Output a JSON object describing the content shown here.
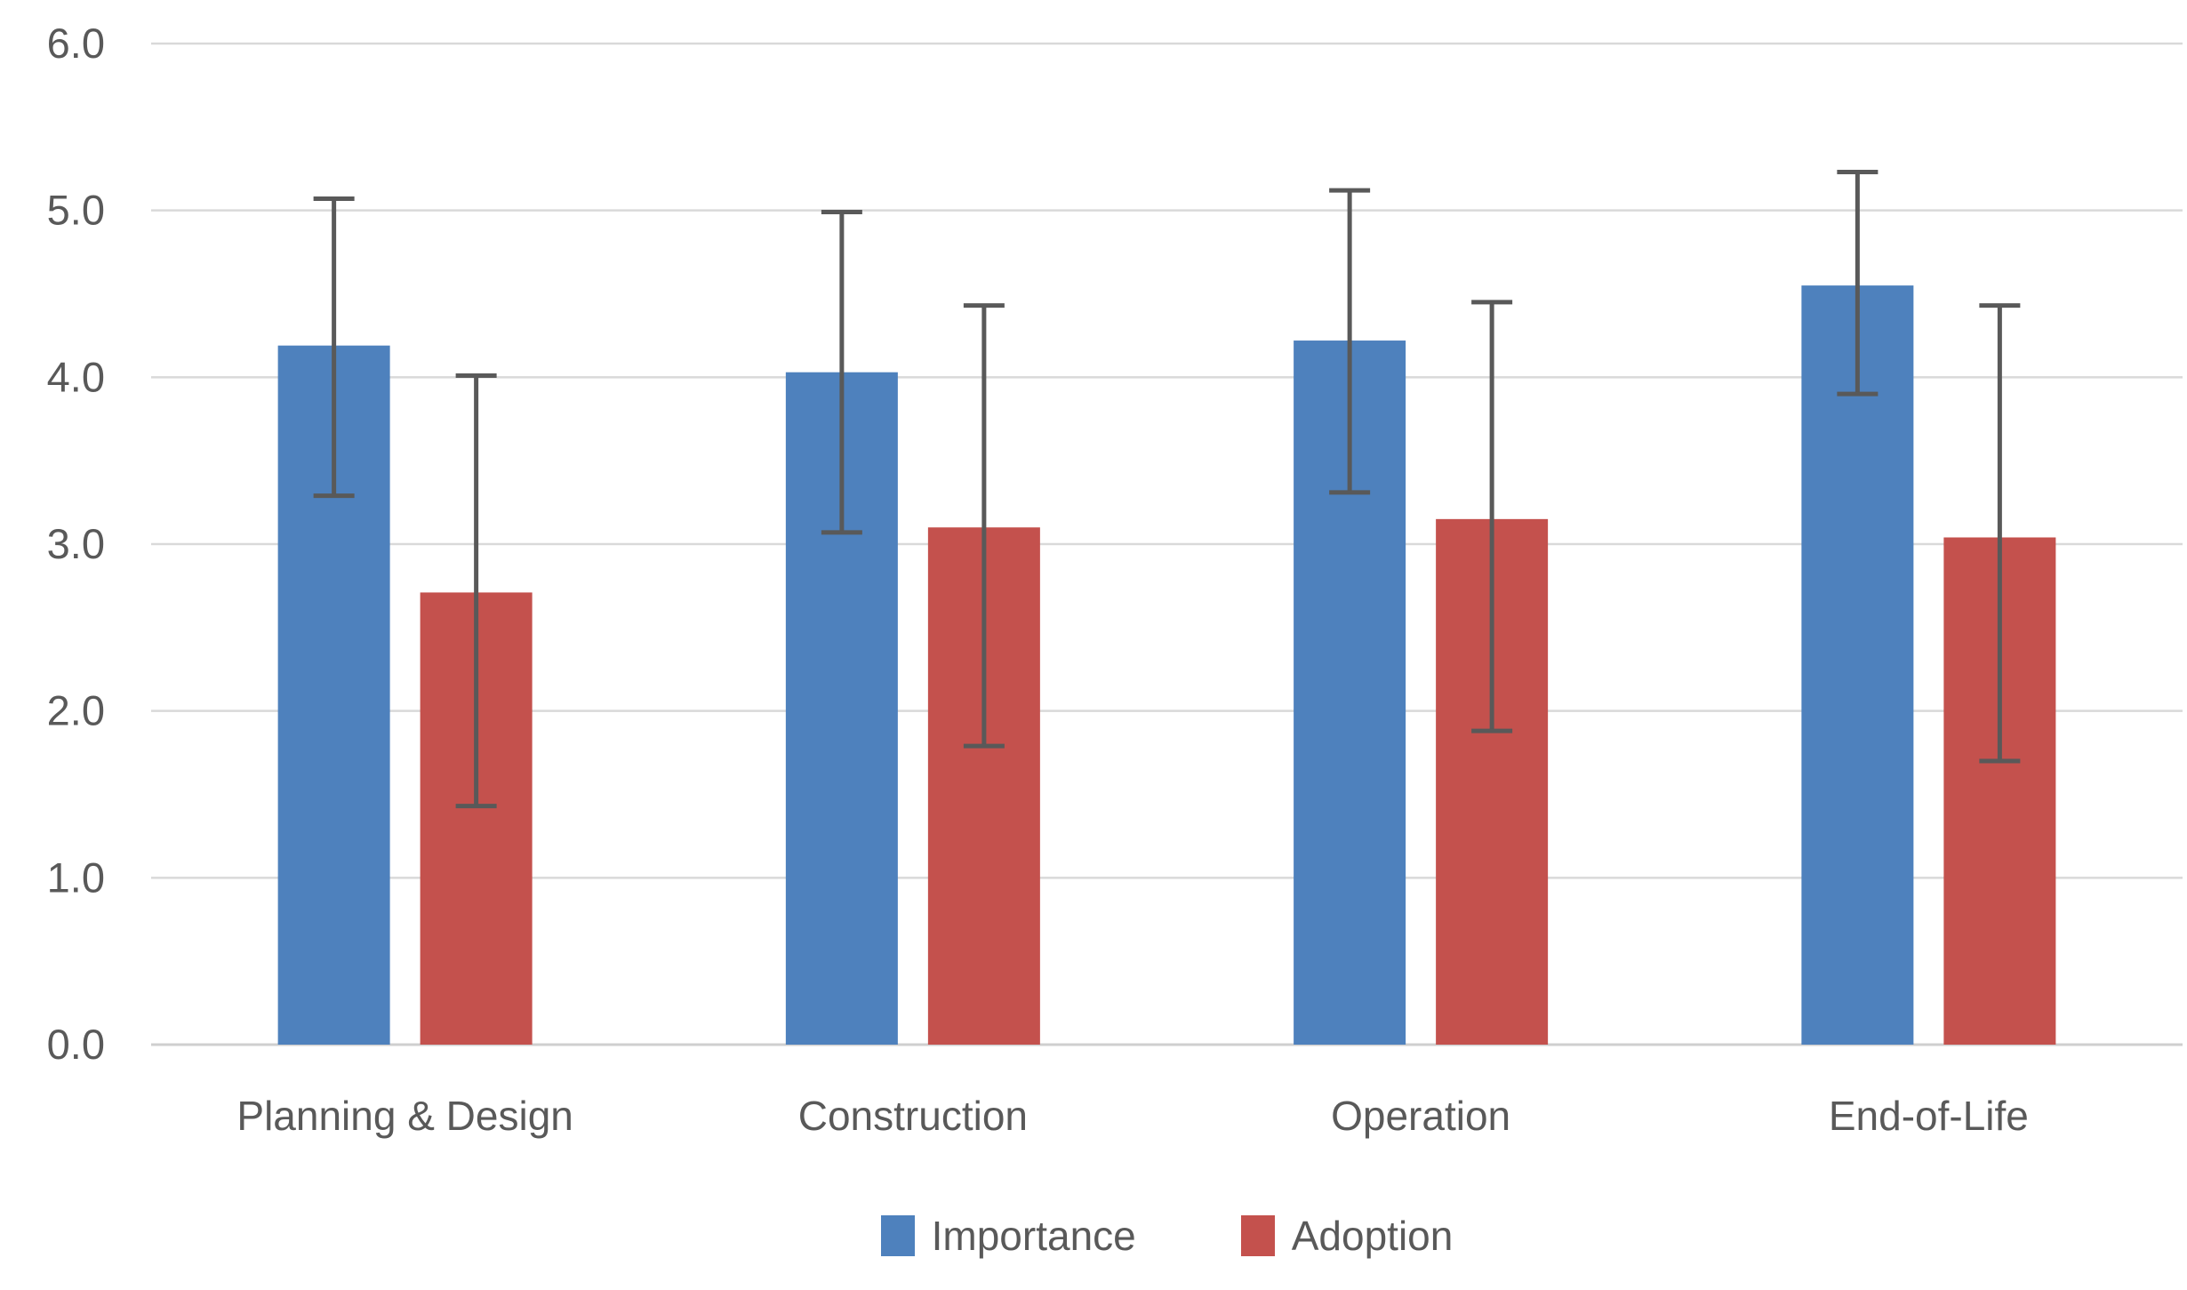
{
  "chart_data": {
    "type": "bar",
    "title": "",
    "xlabel": "",
    "ylabel": "",
    "categories": [
      "Planning & Design",
      "Construction",
      "Operation",
      "End-of-Life"
    ],
    "series": [
      {
        "name": "Importance",
        "color": "#4E81BD",
        "values": [
          4.19,
          4.03,
          4.22,
          4.55
        ],
        "error_low": [
          3.29,
          3.07,
          3.31,
          3.9
        ],
        "error_high": [
          5.07,
          4.99,
          5.12,
          5.23
        ]
      },
      {
        "name": "Adoption",
        "color": "#C4514D",
        "values": [
          2.71,
          3.1,
          3.15,
          3.04
        ],
        "error_low": [
          1.43,
          1.79,
          1.88,
          1.7
        ],
        "error_high": [
          4.01,
          4.43,
          4.45,
          4.43
        ]
      }
    ],
    "y_axis": {
      "min": 0,
      "max": 6,
      "tick_step": 1,
      "tick_labels": [
        "0.0",
        "1.0",
        "2.0",
        "3.0",
        "4.0",
        "5.0",
        "6.0"
      ]
    },
    "grid": true,
    "legend_position": "bottom",
    "colors": {
      "grid_line": "#D9D9D9",
      "axis_line": "#CFCFCF",
      "error_bar": "#595959",
      "text": "#595959",
      "background": "#FFFFFF"
    }
  }
}
